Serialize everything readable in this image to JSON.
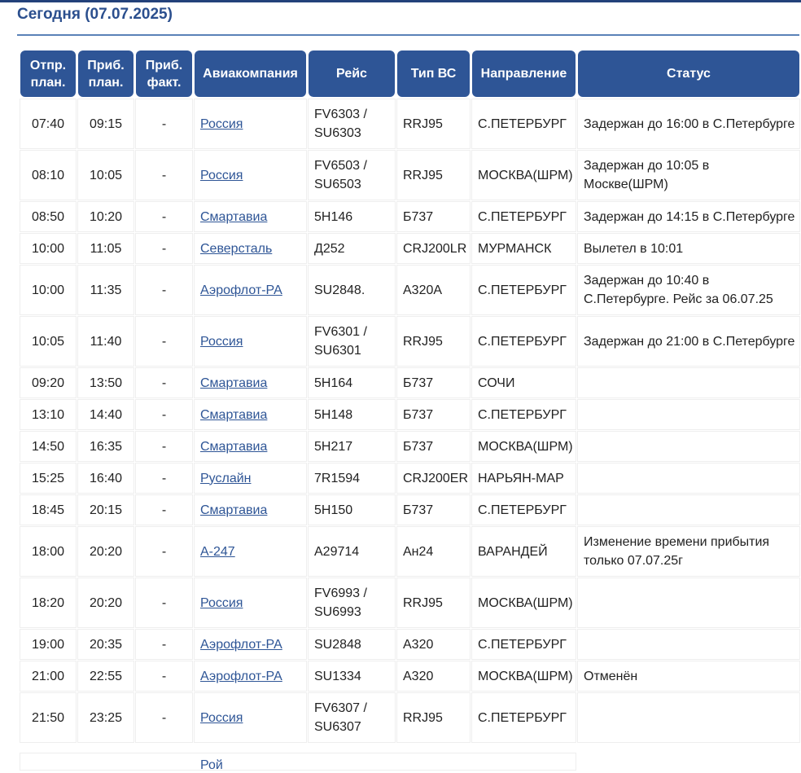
{
  "page": {
    "title": "Сегодня (07.07.2025)"
  },
  "columns": [
    "Отпр. план.",
    "Приб. план.",
    "Приб. факт.",
    "Авиакомпания",
    "Рейс",
    "Тип ВС",
    "Направление",
    "Статус"
  ],
  "rows": [
    {
      "dep": "07:40",
      "arr": "09:15",
      "fact": "-",
      "airline": "Россия",
      "flight": "FV6303 / SU6303",
      "type": "RRJ95",
      "dest": "С.ПЕТЕРБУРГ",
      "status": "Задержан до 16:00 в С.Петербурге"
    },
    {
      "dep": "08:10",
      "arr": "10:05",
      "fact": "-",
      "airline": "Россия",
      "flight": "FV6503 / SU6503",
      "type": "RRJ95",
      "dest": "МОСКВА(ШРМ)",
      "status": "Задержан до 10:05 в Москве(ШРМ)"
    },
    {
      "dep": "08:50",
      "arr": "10:20",
      "fact": "-",
      "airline": "Смартавиа",
      "flight": "5Н146",
      "type": "Б737",
      "dest": "С.ПЕТЕРБУРГ",
      "status": "Задержан до 14:15 в С.Петербурге"
    },
    {
      "dep": "10:00",
      "arr": "11:05",
      "fact": "-",
      "airline": "Северсталь",
      "flight": "Д252",
      "type": "CRJ200LR",
      "dest": "МУРМАНСК",
      "status": "Вылетел в 10:01"
    },
    {
      "dep": "10:00",
      "arr": "11:35",
      "fact": "-",
      "airline": "Аэрофлот-РА",
      "flight": "SU2848.",
      "type": "А320А",
      "dest": "С.ПЕТЕРБУРГ",
      "status": "Задержан до 10:40 в С.Петербурге. Рейс за 06.07.25"
    },
    {
      "dep": "10:05",
      "arr": "11:40",
      "fact": "-",
      "airline": "Россия",
      "flight": "FV6301 / SU6301",
      "type": "RRJ95",
      "dest": "С.ПЕТЕРБУРГ",
      "status": "Задержан до 21:00 в С.Петербурге"
    },
    {
      "dep": "09:20",
      "arr": "13:50",
      "fact": "-",
      "airline": "Смартавиа",
      "flight": "5Н164",
      "type": "Б737",
      "dest": "СОЧИ",
      "status": ""
    },
    {
      "dep": "13:10",
      "arr": "14:40",
      "fact": "-",
      "airline": "Смартавиа",
      "flight": "5Н148",
      "type": "Б737",
      "dest": "С.ПЕТЕРБУРГ",
      "status": ""
    },
    {
      "dep": "14:50",
      "arr": "16:35",
      "fact": "-",
      "airline": "Смартавиа",
      "flight": "5Н217",
      "type": "Б737",
      "dest": "МОСКВА(ШРМ)",
      "status": ""
    },
    {
      "dep": "15:25",
      "arr": "16:40",
      "fact": "-",
      "airline": "Руслайн",
      "flight": "7R1594",
      "type": "CRJ200ER",
      "dest": "НАРЬЯН-МАР",
      "status": ""
    },
    {
      "dep": "18:45",
      "arr": "20:15",
      "fact": "-",
      "airline": "Смартавиа",
      "flight": "5Н150",
      "type": "Б737",
      "dest": "С.ПЕТЕРБУРГ",
      "status": ""
    },
    {
      "dep": "18:00",
      "arr": "20:20",
      "fact": "-",
      "airline": "А-247",
      "flight": "А29714",
      "type": "Ан24",
      "dest": "ВАРАНДЕЙ",
      "status": "Изменение времени прибытия только 07.07.25г"
    },
    {
      "dep": "18:20",
      "arr": "20:20",
      "fact": "-",
      "airline": "Россия",
      "flight": "FV6993 / SU6993",
      "type": "RRJ95",
      "dest": "МОСКВА(ШРМ)",
      "status": ""
    },
    {
      "dep": "19:00",
      "arr": "20:35",
      "fact": "-",
      "airline": "Аэрофлот-РА",
      "flight": "SU2848",
      "type": "А320",
      "dest": "С.ПЕТЕРБУРГ",
      "status": ""
    },
    {
      "dep": "21:00",
      "arr": "22:55",
      "fact": "-",
      "airline": "Аэрофлот-РА",
      "flight": "SU1334",
      "type": "А320",
      "dest": "МОСКВА(ШРМ)",
      "status": "Отменён"
    },
    {
      "dep": "21:50",
      "arr": "23:25",
      "fact": "-",
      "airline": "Россия",
      "flight": "FV6307 / SU6307",
      "type": "RRJ95",
      "dest": "С.ПЕТЕРБУРГ",
      "status": ""
    }
  ],
  "partial_row_airline": "Рой"
}
